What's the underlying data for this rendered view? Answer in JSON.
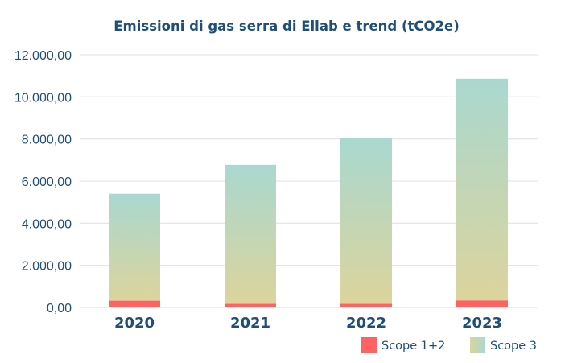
{
  "chart_data": {
    "type": "bar",
    "stacked": true,
    "title": "Emissioni di gas serra di Ellab e trend (tCO2e)",
    "xlabel": "",
    "ylabel": "",
    "categories": [
      "2020",
      "2021",
      "2022",
      "2023"
    ],
    "series": [
      {
        "name": "Scope 1+2",
        "color": "#ff6262",
        "values": [
          320,
          170,
          170,
          330
        ]
      },
      {
        "name": "Scope 3",
        "color_top": "#a9d8d0",
        "color_bottom": "#dcd49c",
        "values": [
          5080,
          6600,
          7860,
          10530
        ]
      }
    ],
    "ylim": [
      0,
      12000
    ],
    "yticks": [
      0,
      2000,
      4000,
      6000,
      8000,
      10000,
      12000
    ],
    "ytick_labels": [
      "0,00",
      "2.000,00",
      "4.000,00",
      "6.000,00",
      "8.000,00",
      "10.000,00",
      "12.000,00"
    ],
    "grid": true,
    "legend": {
      "position": "bottom-right",
      "entries": [
        "Scope 1+2",
        "Scope 3"
      ]
    }
  },
  "colors": {
    "text": "#1f4e7a",
    "grid": "#e6e6e6"
  }
}
